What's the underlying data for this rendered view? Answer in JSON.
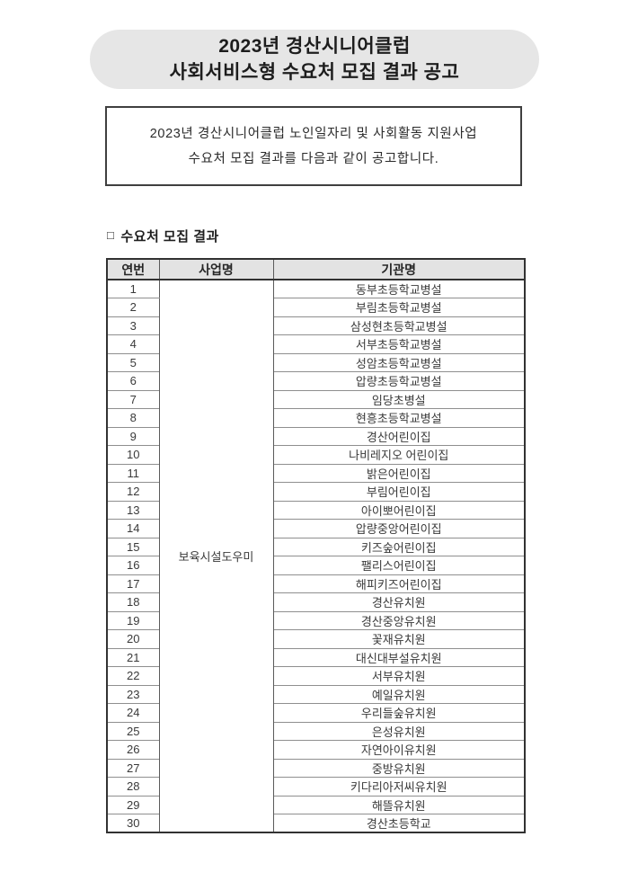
{
  "page": {
    "title_line1": "2023년 경산시니어클럽",
    "title_line2": "사회서비스형 수요처 모집 결과 공고",
    "notice_line1": "2023년 경산시니어클럽 노인일자리 및 사회활동 지원사업",
    "notice_line2": "수요처 모집 결과를 다음과 같이 공고합니다.",
    "section_marker": "□",
    "section_title": "수요처 모집 결과"
  },
  "table": {
    "headers": [
      "연번",
      "사업명",
      "기관명"
    ],
    "program_name": "보육시설도우미",
    "rows": [
      {
        "no": "1",
        "org": "동부초등학교병설"
      },
      {
        "no": "2",
        "org": "부림초등학교병설"
      },
      {
        "no": "3",
        "org": "삼성현초등학교병설"
      },
      {
        "no": "4",
        "org": "서부초등학교병설"
      },
      {
        "no": "5",
        "org": "성암초등학교병설"
      },
      {
        "no": "6",
        "org": "압량초등학교병설"
      },
      {
        "no": "7",
        "org": "임당초병설"
      },
      {
        "no": "8",
        "org": "현흥초등학교병설"
      },
      {
        "no": "9",
        "org": "경산어린이집"
      },
      {
        "no": "10",
        "org": "나비레지오 어린이집"
      },
      {
        "no": "11",
        "org": "밝은어린이집"
      },
      {
        "no": "12",
        "org": "부림어린이집"
      },
      {
        "no": "13",
        "org": "아이뽀어린이집"
      },
      {
        "no": "14",
        "org": "압량중앙어린이집"
      },
      {
        "no": "15",
        "org": "키즈숲어린이집"
      },
      {
        "no": "16",
        "org": "팰리스어린이집"
      },
      {
        "no": "17",
        "org": "해피키즈어린이집"
      },
      {
        "no": "18",
        "org": "경산유치원"
      },
      {
        "no": "19",
        "org": "경산중앙유치원"
      },
      {
        "no": "20",
        "org": "꽃재유치원"
      },
      {
        "no": "21",
        "org": "대신대부설유치원"
      },
      {
        "no": "22",
        "org": "서부유치원"
      },
      {
        "no": "23",
        "org": "예일유치원"
      },
      {
        "no": "24",
        "org": "우리들숲유치원"
      },
      {
        "no": "25",
        "org": "은성유치원"
      },
      {
        "no": "26",
        "org": "자연아이유치원"
      },
      {
        "no": "27",
        "org": "중방유치원"
      },
      {
        "no": "28",
        "org": "키다리아저씨유치원"
      },
      {
        "no": "29",
        "org": "해뜰유치원"
      },
      {
        "no": "30",
        "org": "경산초등학교"
      }
    ]
  },
  "colors": {
    "title_banner_bg": "#e6e6e6",
    "table_header_bg": "#e3e3e3",
    "frame_border": "#323232",
    "row_border": "#8f8f8f",
    "text": "#2f2f2f"
  }
}
